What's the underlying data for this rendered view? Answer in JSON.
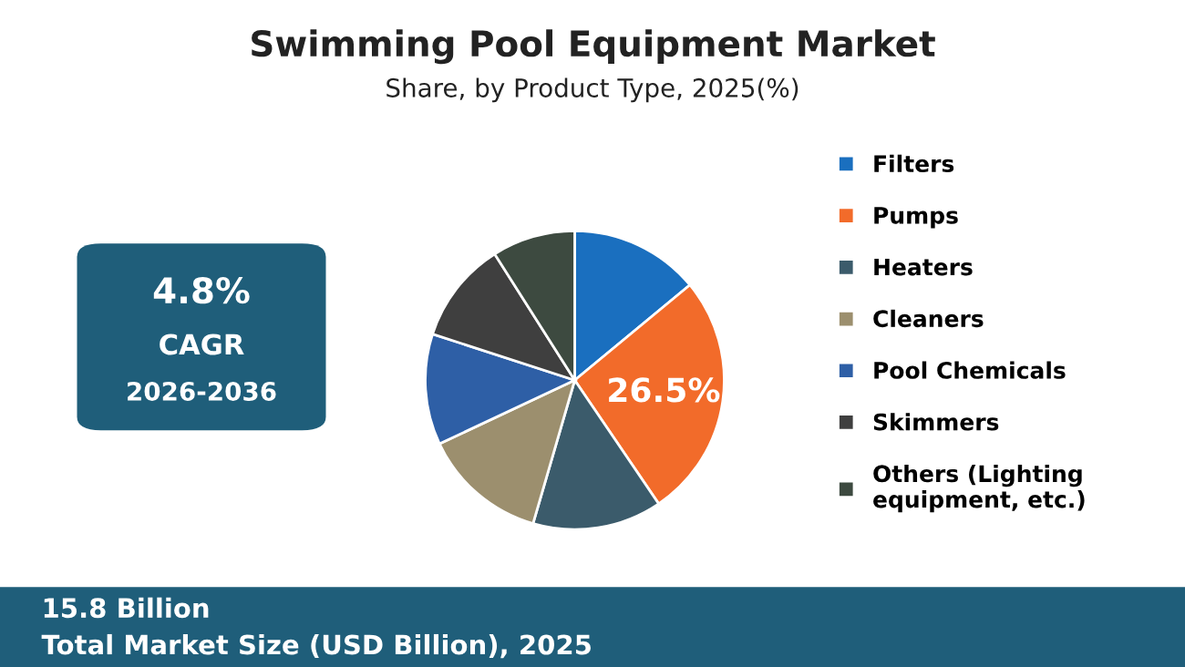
{
  "chart_data": {
    "type": "pie",
    "title": "Swimming Pool Equipment Market",
    "subtitle": "Share, by Product Type, 2025(%)",
    "categories": [
      "Filters",
      "Pumps",
      "Heaters",
      "Cleaners",
      "Pool Chemicals",
      "Skimmers",
      "Others (Lighting equipment, etc.)"
    ],
    "values": [
      14,
      26.5,
      14,
      13.5,
      12,
      11,
      9
    ],
    "colors": [
      "#1a6fbf",
      "#f26b2a",
      "#3b5b6b",
      "#9c8f6e",
      "#2e5fa6",
      "#3f3f3f",
      "#3d4a40"
    ],
    "value_labels": [
      null,
      "26.5%",
      null,
      null,
      null,
      null,
      null
    ],
    "legend": "right",
    "annotations": [
      "4.8%",
      "CAGR",
      "2026-2036",
      "15.8 Billion",
      "Total Market Size (USD Billion), 2025"
    ]
  }
}
